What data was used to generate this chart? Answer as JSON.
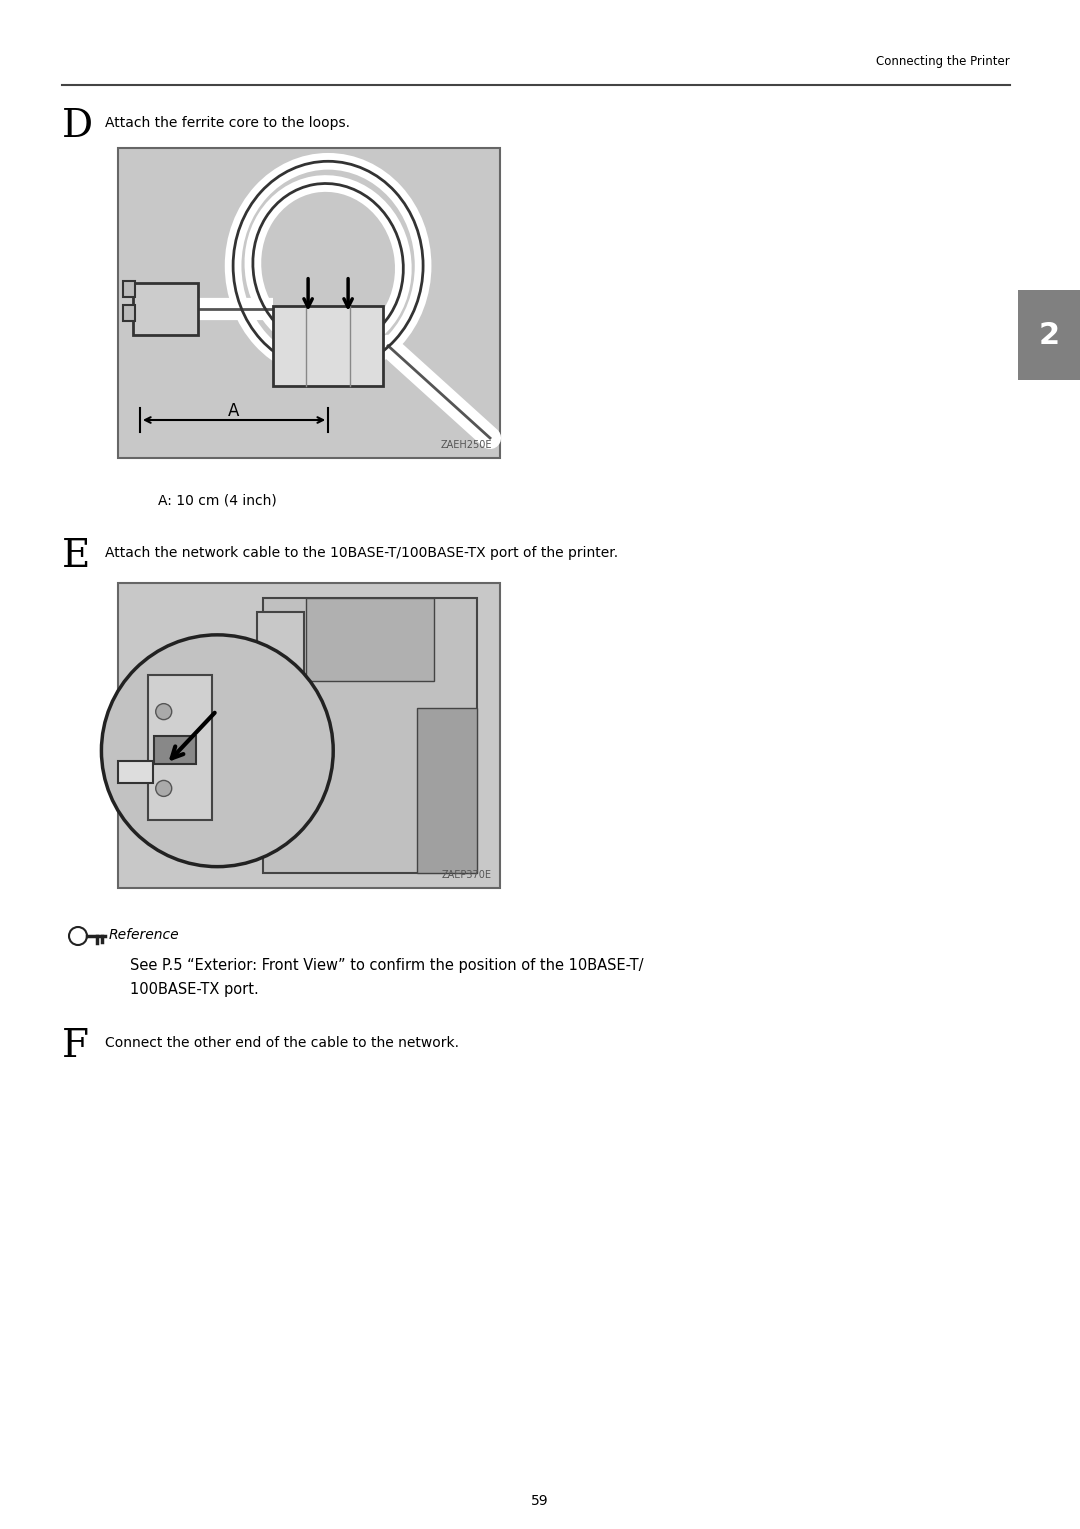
{
  "page_width": 10.8,
  "page_height": 15.29,
  "background_color": "#ffffff",
  "header_text": "Connecting the Printer",
  "header_fontsize": 8.5,
  "section_d_letter": "D",
  "section_d_text": "Attach the ferrite core to the loops.",
  "section_d_text_fontsize": 10,
  "section_d_letter_fontsize": 28,
  "image1_label": "ZAEH250E",
  "caption_a": "A: 10 cm (4 inch)",
  "caption_a_fontsize": 10,
  "section_e_letter": "E",
  "section_e_text": "Attach the network cable to the 10BASE-T/100BASE-TX port of the printer.",
  "section_e_text_fontsize": 10,
  "section_e_letter_fontsize": 28,
  "image2_label": "ZAEP370E",
  "reference_text": "Reference",
  "reference_fontsize": 10,
  "reference_body_line1": "See P.5 “Exterior: Front View” to confirm the position of the 10BASE-T/",
  "reference_body_line2": "100BASE-TX port.",
  "reference_body_fontsize": 10.5,
  "section_f_letter": "F",
  "section_f_text": "Connect the other end of the cable to the network.",
  "section_f_text_fontsize": 10,
  "section_f_letter_fontsize": 28,
  "page_number": "59",
  "tab_color": "#808080",
  "tab_text": "2",
  "tab_text_color": "#ffffff",
  "gray_bg": "#c8c8c8",
  "text_color": "#000000"
}
